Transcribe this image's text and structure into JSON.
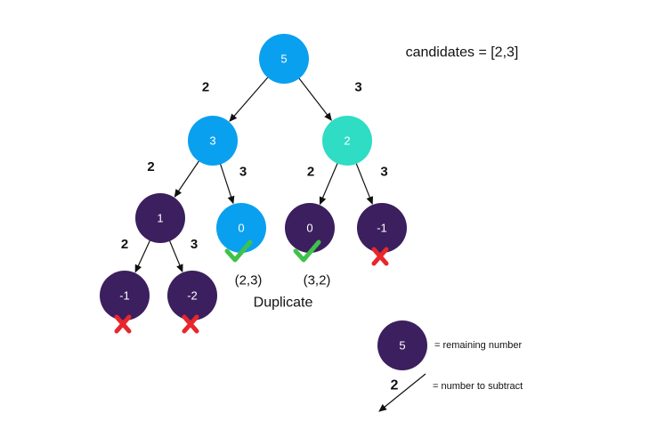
{
  "title": "candidates = [2,3]",
  "colors": {
    "active": "#0aa0f0",
    "branch": "#2fdcc4",
    "dead": "#3b1f5e",
    "check": "#3fc24a",
    "cross": "#e8262b",
    "edge": "#111111"
  },
  "nodes": [
    {
      "id": "n5",
      "label": "5",
      "color": "active",
      "mark": ""
    },
    {
      "id": "n3",
      "label": "3",
      "color": "active",
      "mark": ""
    },
    {
      "id": "n2",
      "label": "2",
      "color": "branch",
      "mark": ""
    },
    {
      "id": "n1",
      "label": "1",
      "color": "dead",
      "mark": ""
    },
    {
      "id": "n0a",
      "label": "0",
      "color": "active",
      "mark": "check"
    },
    {
      "id": "n0b",
      "label": "0",
      "color": "dead",
      "mark": "check"
    },
    {
      "id": "nm1a",
      "label": "-1",
      "color": "dead",
      "mark": "cross"
    },
    {
      "id": "nm1b",
      "label": "-1",
      "color": "dead",
      "mark": "cross"
    },
    {
      "id": "nm2",
      "label": "-2",
      "color": "dead",
      "mark": "cross"
    }
  ],
  "edges": [
    {
      "from": "n5",
      "to": "n3",
      "label": "2"
    },
    {
      "from": "n5",
      "to": "n2",
      "label": "3"
    },
    {
      "from": "n3",
      "to": "n1",
      "label": "2"
    },
    {
      "from": "n3",
      "to": "n0a",
      "label": "3"
    },
    {
      "from": "n2",
      "to": "n0b",
      "label": "2"
    },
    {
      "from": "n2",
      "to": "nm1a",
      "label": "3"
    },
    {
      "from": "n1",
      "to": "nm1b",
      "label": "2"
    },
    {
      "from": "n1",
      "to": "nm2",
      "label": "3"
    }
  ],
  "results": [
    {
      "node": "n0a",
      "text": "(2,3)"
    },
    {
      "node": "n0b",
      "text": "(3,2)"
    }
  ],
  "duplicate_label": "Duplicate",
  "legend": {
    "node_label": "5",
    "node_text": "= remaining number",
    "edge_label": "2",
    "edge_text": "= number to subtract"
  }
}
